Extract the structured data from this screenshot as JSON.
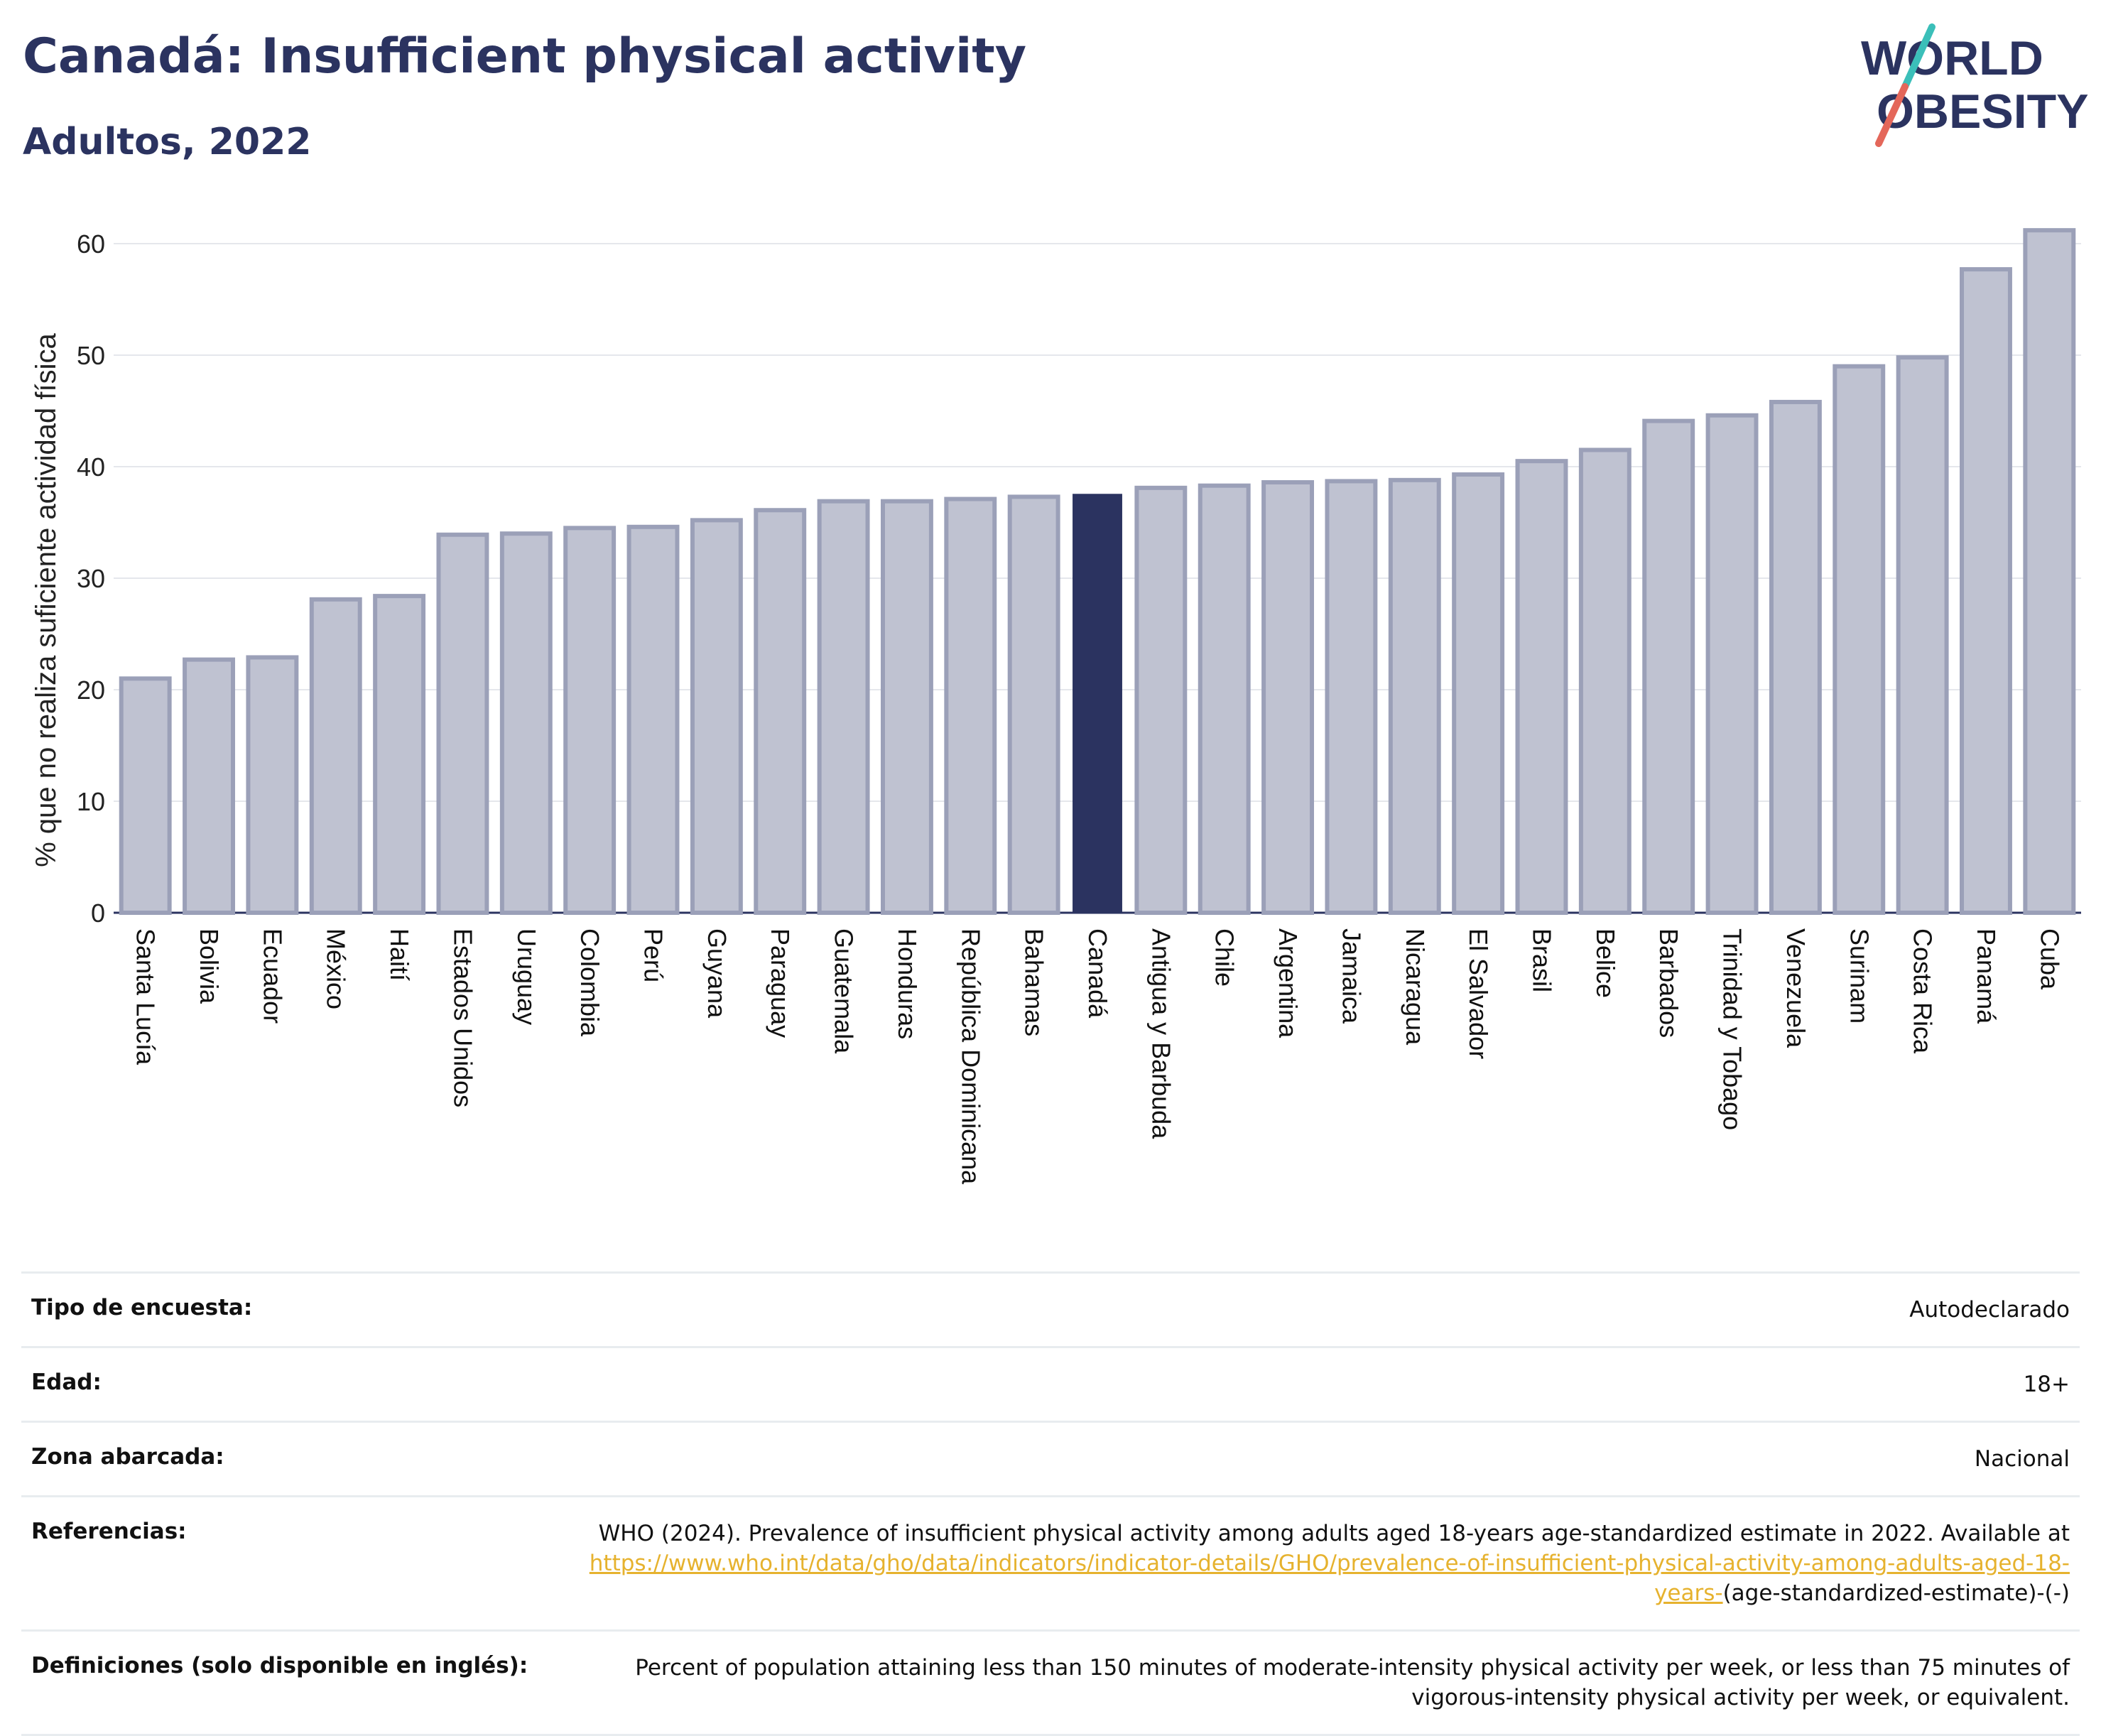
{
  "header": {
    "title": "Canadá: Insufficient physical activity",
    "subtitle": "Adultos, 2022"
  },
  "logo": {
    "line1": "WORLD",
    "line2": "OBESITY",
    "colors": {
      "text": "#2b3360",
      "slash_top": "#3bbfb9",
      "slash_bottom": "#e4675a"
    }
  },
  "chart_data": {
    "type": "bar",
    "ylabel": "% que no realiza suficiente actividad física",
    "xlabel": "",
    "ylim": [
      0,
      62
    ],
    "yticks": [
      0,
      10,
      20,
      30,
      40,
      50,
      60
    ],
    "grid": true,
    "highlight": "Canadá",
    "colors": {
      "bar": "#bfc2d1",
      "bar_border": "#9ba0b8",
      "highlight": "#2b3360"
    },
    "categories": [
      "Santa Lucía",
      "Bolivia",
      "Ecuador",
      "México",
      "Haití",
      "Estados Unidos",
      "Uruguay",
      "Colombia",
      "Perú",
      "Guyana",
      "Paraguay",
      "Guatemala",
      "Honduras",
      "República Dominicana",
      "Bahamas",
      "Canadá",
      "Antigua y Barbuda",
      "Chile",
      "Argentina",
      "Jamaica",
      "Nicaragua",
      "El Salvador",
      "Brasil",
      "Belice",
      "Barbados",
      "Trinidad y Tobago",
      "Venezuela",
      "Surinam",
      "Costa Rica",
      "Panamá",
      "Cuba"
    ],
    "values": [
      21.0,
      22.7,
      22.9,
      28.1,
      28.4,
      33.9,
      34.0,
      34.5,
      34.6,
      35.2,
      36.1,
      36.9,
      36.9,
      37.1,
      37.3,
      37.5,
      38.1,
      38.3,
      38.6,
      38.7,
      38.8,
      39.3,
      40.5,
      41.5,
      44.1,
      44.6,
      45.8,
      49.0,
      49.8,
      57.7,
      61.2
    ]
  },
  "meta": {
    "survey_label": "Tipo de encuesta:",
    "survey_value": "Autodeclarado",
    "age_label": "Edad:",
    "age_value": "18+",
    "area_label": "Zona abarcada:",
    "area_value": "Nacional",
    "refs_label": "Referencias:",
    "refs_text": "WHO (2024). Prevalence of insufficient physical activity among adults aged 18-years age-standardized estimate in 2022. Available at",
    "refs_link": "https://www.who.int/data/gho/data/indicators/indicator-details/GHO/prevalence-of-insufficient-physical-activity-among-adults-aged-18-years-",
    "refs_suffix": "(age-standardized-estimate)-(-)",
    "defs_label": "Definiciones (solo disponible en inglés):",
    "defs_value": "Percent of population attaining less than 150 minutes of moderate-intensity physical activity per week, or less than 75 minutes of vigorous-intensity physical activity per week, or equivalent."
  }
}
